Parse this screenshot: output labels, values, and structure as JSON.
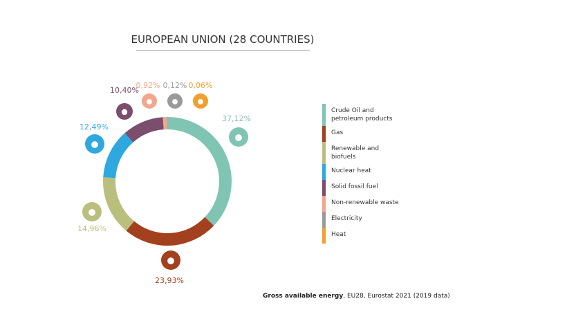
{
  "chart_data": {
    "type": "donut",
    "title": "EUROPEAN UNION (28 COUNTRIES)",
    "categories": [
      "Crude Oil and petroleum products",
      "Gas",
      "Renewable and biofuels",
      "Nuclear heat",
      "Solid fossil fuel",
      "Non-renewable waste",
      "Electricity",
      "Heat"
    ],
    "values": [
      37.12,
      23.93,
      14.96,
      12.49,
      10.4,
      0.92,
      0.12,
      0.06
    ],
    "value_labels": [
      "37,12%",
      "23,93%",
      "14,96%",
      "12,49%",
      "10,40%",
      "0,92%",
      "0,12%",
      "0,06%"
    ],
    "colors": [
      "#80c4b3",
      "#a3401e",
      "#bbbf7e",
      "#2fa7df",
      "#7a4e6c",
      "#f2a78c",
      "#9a9a9a",
      "#f0a030"
    ],
    "caption": {
      "bold": "Gross available energy",
      "rest": ", EU28, Eurostat 2021 (2019 data)"
    }
  }
}
